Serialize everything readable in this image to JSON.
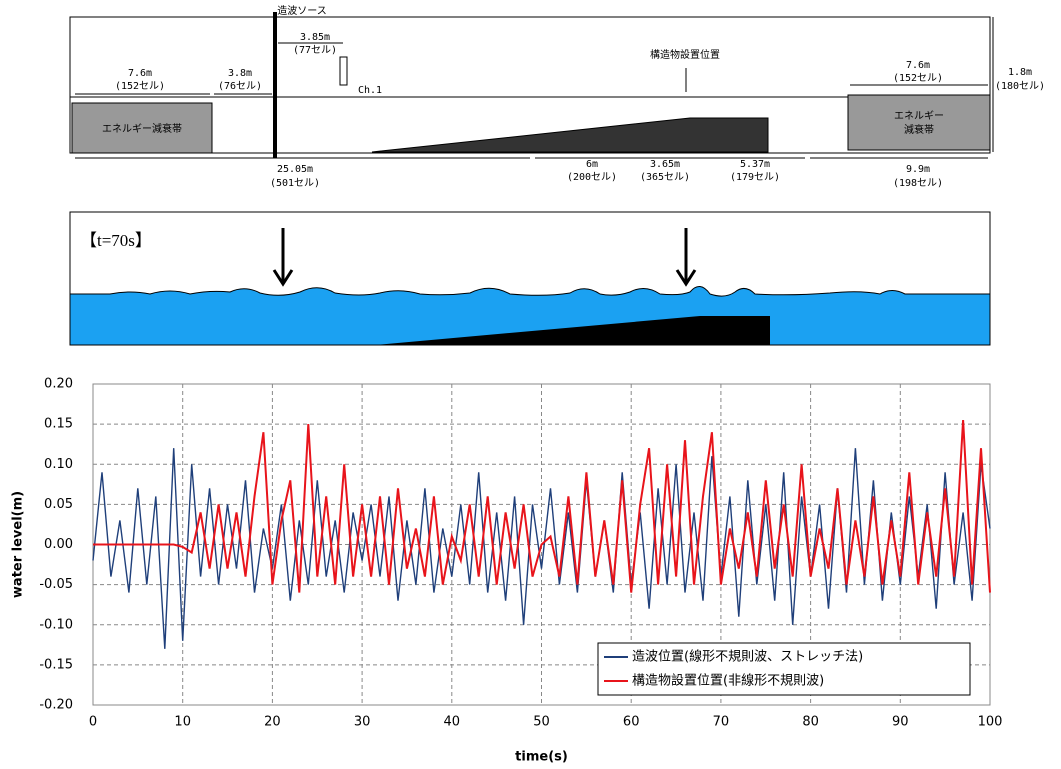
{
  "diagram": {
    "labels": [
      "造波ソース",
      "7.6m",
      "(152セル)",
      "3.8m",
      "(76セル)",
      "3.85m",
      "(77セル)",
      "Ch.1",
      "構造物設置位置",
      "7.6m",
      "(152セル)",
      "1.8m",
      "(180セル)",
      "エネルギー減衰帯",
      "エネルギー",
      "減衰帯",
      "25.05m",
      "(501セル)",
      "6m",
      "(200セル)",
      "3.65m",
      "(365セル)",
      "5.37m",
      "(179セル)",
      "9.9m",
      "(198セル)"
    ]
  },
  "snapshot": {
    "label": "【t=70s】"
  },
  "chart_data": {
    "type": "line",
    "x_label": "time(s)",
    "y_label": "water level(m)",
    "xlim": [
      0,
      100
    ],
    "xticks": [
      0,
      10,
      20,
      30,
      40,
      50,
      60,
      70,
      80,
      90,
      100
    ],
    "ylim": [
      -0.2,
      0.2
    ],
    "yticks": [
      {
        "value": 0.2,
        "label": "0.20"
      },
      0.15,
      {
        "value": 0.1,
        "label": "0.10"
      },
      0.05,
      {
        "value": 0,
        "label": "0.00"
      },
      -0.05,
      {
        "value": -0.1,
        "label": "-0.10"
      },
      -0.15,
      {
        "value": -0.2,
        "label": "-0.20"
      }
    ],
    "grid": true,
    "legend": "lower right",
    "x": [
      0,
      1,
      2,
      3,
      4,
      5,
      6,
      7,
      8,
      9,
      10,
      11,
      12,
      13,
      14,
      15,
      16,
      17,
      18,
      19,
      20,
      21,
      22,
      23,
      24,
      25,
      26,
      27,
      28,
      29,
      30,
      31,
      32,
      33,
      34,
      35,
      36,
      37,
      38,
      39,
      40,
      41,
      42,
      43,
      44,
      45,
      46,
      47,
      48,
      49,
      50,
      51,
      52,
      53,
      54,
      55,
      56,
      57,
      58,
      59,
      60,
      61,
      62,
      63,
      64,
      65,
      66,
      67,
      68,
      69,
      70,
      71,
      72,
      73,
      74,
      75,
      76,
      77,
      78,
      79,
      80,
      81,
      82,
      83,
      84,
      85,
      86,
      87,
      88,
      89,
      90,
      91,
      92,
      93,
      94,
      95,
      96,
      97,
      98,
      99,
      100
    ],
    "series": [
      {
        "name": "造波位置(線形不規則波、ストレッチ法)",
        "color": "#1f3f7a",
        "values": [
          -0.02,
          0.09,
          -0.04,
          0.03,
          -0.06,
          0.07,
          -0.05,
          0.06,
          -0.13,
          0.12,
          -0.12,
          0.1,
          -0.04,
          0.07,
          -0.05,
          0.05,
          -0.03,
          0.08,
          -0.06,
          0.02,
          -0.03,
          0.05,
          -0.07,
          0.03,
          -0.05,
          0.08,
          -0.04,
          0.03,
          -0.06,
          0.04,
          -0.02,
          0.05,
          -0.04,
          0.06,
          -0.07,
          0.03,
          -0.05,
          0.07,
          -0.06,
          0.02,
          -0.04,
          0.05,
          -0.05,
          0.09,
          -0.06,
          0.04,
          -0.07,
          0.06,
          -0.1,
          0.05,
          -0.03,
          0.07,
          -0.05,
          0.04,
          -0.06,
          0.08,
          -0.04,
          0.03,
          -0.06,
          0.09,
          -0.05,
          0.04,
          -0.08,
          0.07,
          -0.05,
          0.1,
          -0.06,
          0.04,
          -0.07,
          0.11,
          -0.04,
          0.06,
          -0.09,
          0.08,
          -0.05,
          0.05,
          -0.07,
          0.09,
          -0.1,
          0.06,
          -0.04,
          0.05,
          -0.08,
          0.07,
          -0.06,
          0.12,
          -0.05,
          0.08,
          -0.07,
          0.04,
          -0.05,
          0.06,
          -0.04,
          0.05,
          -0.08,
          0.09,
          -0.05,
          0.04,
          -0.07,
          0.1,
          0.02
        ]
      },
      {
        "name": "構造物設置位置(非線形不規則波)",
        "color": "#e8141b",
        "values": [
          0,
          0,
          0,
          0,
          0,
          0,
          0,
          0,
          0,
          0,
          -0.003,
          -0.01,
          0.04,
          -0.03,
          0.05,
          -0.03,
          0.04,
          -0.04,
          0.06,
          0.14,
          -0.05,
          0.03,
          0.08,
          -0.06,
          0.15,
          -0.04,
          0.06,
          -0.05,
          0.1,
          -0.04,
          0.05,
          -0.04,
          0.06,
          -0.05,
          0.07,
          -0.03,
          0.02,
          -0.04,
          0.06,
          -0.05,
          0.01,
          -0.02,
          0.05,
          -0.04,
          0.06,
          -0.05,
          0.04,
          -0.03,
          0.05,
          -0.04,
          0,
          0.01,
          -0.04,
          0.06,
          -0.05,
          0.09,
          -0.04,
          0.03,
          -0.05,
          0.08,
          -0.06,
          0.05,
          0.12,
          -0.05,
          0.1,
          -0.04,
          0.13,
          -0.05,
          0.06,
          0.14,
          -0.05,
          0.02,
          -0.03,
          0.04,
          -0.04,
          0.08,
          -0.03,
          0.05,
          -0.04,
          0.1,
          -0.04,
          0.02,
          -0.03,
          0.07,
          -0.05,
          0.03,
          -0.04,
          0.06,
          -0.05,
          0.03,
          -0.04,
          0.09,
          -0.05,
          0.04,
          -0.04,
          0.07,
          -0.04,
          0.155,
          -0.05,
          0.12,
          -0.06
        ]
      }
    ]
  }
}
